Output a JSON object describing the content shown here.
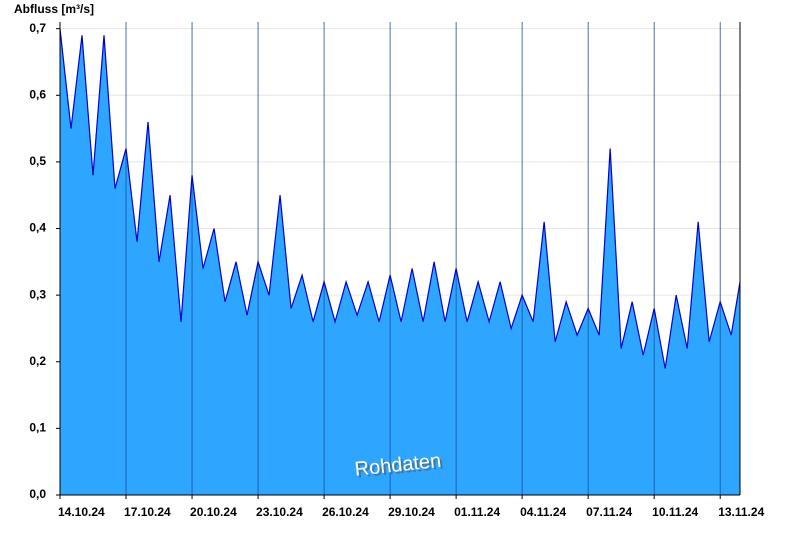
{
  "chart_data": {
    "type": "area",
    "y_label": "Abfluss [m³/s]",
    "annotation": "Rohdaten",
    "xlim": [
      0,
      30.9
    ],
    "xticks": [
      {
        "value": 0,
        "label": "14.10.24"
      },
      {
        "value": 3,
        "label": "17.10.24"
      },
      {
        "value": 6,
        "label": "20.10.24"
      },
      {
        "value": 9,
        "label": "23.10.24"
      },
      {
        "value": 12,
        "label": "26.10.24"
      },
      {
        "value": 15,
        "label": "29.10.24"
      },
      {
        "value": 18,
        "label": "01.11.24"
      },
      {
        "value": 21,
        "label": "04.11.24"
      },
      {
        "value": 24,
        "label": "07.11.24"
      },
      {
        "value": 27,
        "label": "10.11.24"
      },
      {
        "value": 30,
        "label": "13.11.24"
      }
    ],
    "ylim": [
      0,
      0.71
    ],
    "yticks": [
      {
        "value": 0,
        "label": "0,0"
      },
      {
        "value": 0.1,
        "label": "0,1"
      },
      {
        "value": 0.2,
        "label": "0,2"
      },
      {
        "value": 0.3,
        "label": "0,3"
      },
      {
        "value": 0.4,
        "label": "0,4"
      },
      {
        "value": 0.5,
        "label": "0,5"
      },
      {
        "value": 0.6,
        "label": "0,6"
      },
      {
        "value": 0.7,
        "label": "0,7"
      }
    ],
    "grid": true,
    "series": [
      {
        "fill": "#2ea6ff",
        "color": "#0000cc",
        "x": [
          0,
          0.5,
          1,
          1.5,
          2,
          2.5,
          3,
          3.5,
          4,
          4.5,
          5,
          5.5,
          6,
          6.5,
          7,
          7.5,
          8,
          8.5,
          9,
          9.5,
          10,
          10.5,
          11,
          11.5,
          12,
          12.5,
          13,
          13.5,
          14,
          14.5,
          15,
          15.5,
          16,
          16.5,
          17,
          17.5,
          18,
          18.5,
          19,
          19.5,
          20,
          20.5,
          21,
          21.5,
          22,
          22.5,
          23,
          23.5,
          24,
          24.5,
          25,
          25.5,
          26,
          26.5,
          27,
          27.5,
          28,
          28.5,
          29,
          29.5,
          30,
          30.5,
          30.9
        ],
        "values": [
          0.7,
          0.55,
          0.69,
          0.48,
          0.69,
          0.46,
          0.52,
          0.38,
          0.56,
          0.35,
          0.45,
          0.26,
          0.48,
          0.34,
          0.4,
          0.29,
          0.35,
          0.27,
          0.35,
          0.3,
          0.45,
          0.28,
          0.33,
          0.26,
          0.32,
          0.26,
          0.32,
          0.27,
          0.32,
          0.26,
          0.33,
          0.26,
          0.34,
          0.26,
          0.35,
          0.26,
          0.34,
          0.26,
          0.32,
          0.26,
          0.32,
          0.25,
          0.3,
          0.26,
          0.41,
          0.23,
          0.29,
          0.24,
          0.28,
          0.24,
          0.52,
          0.22,
          0.29,
          0.21,
          0.28,
          0.19,
          0.3,
          0.22,
          0.41,
          0.23,
          0.29,
          0.24,
          0.32
        ]
      }
    ]
  }
}
